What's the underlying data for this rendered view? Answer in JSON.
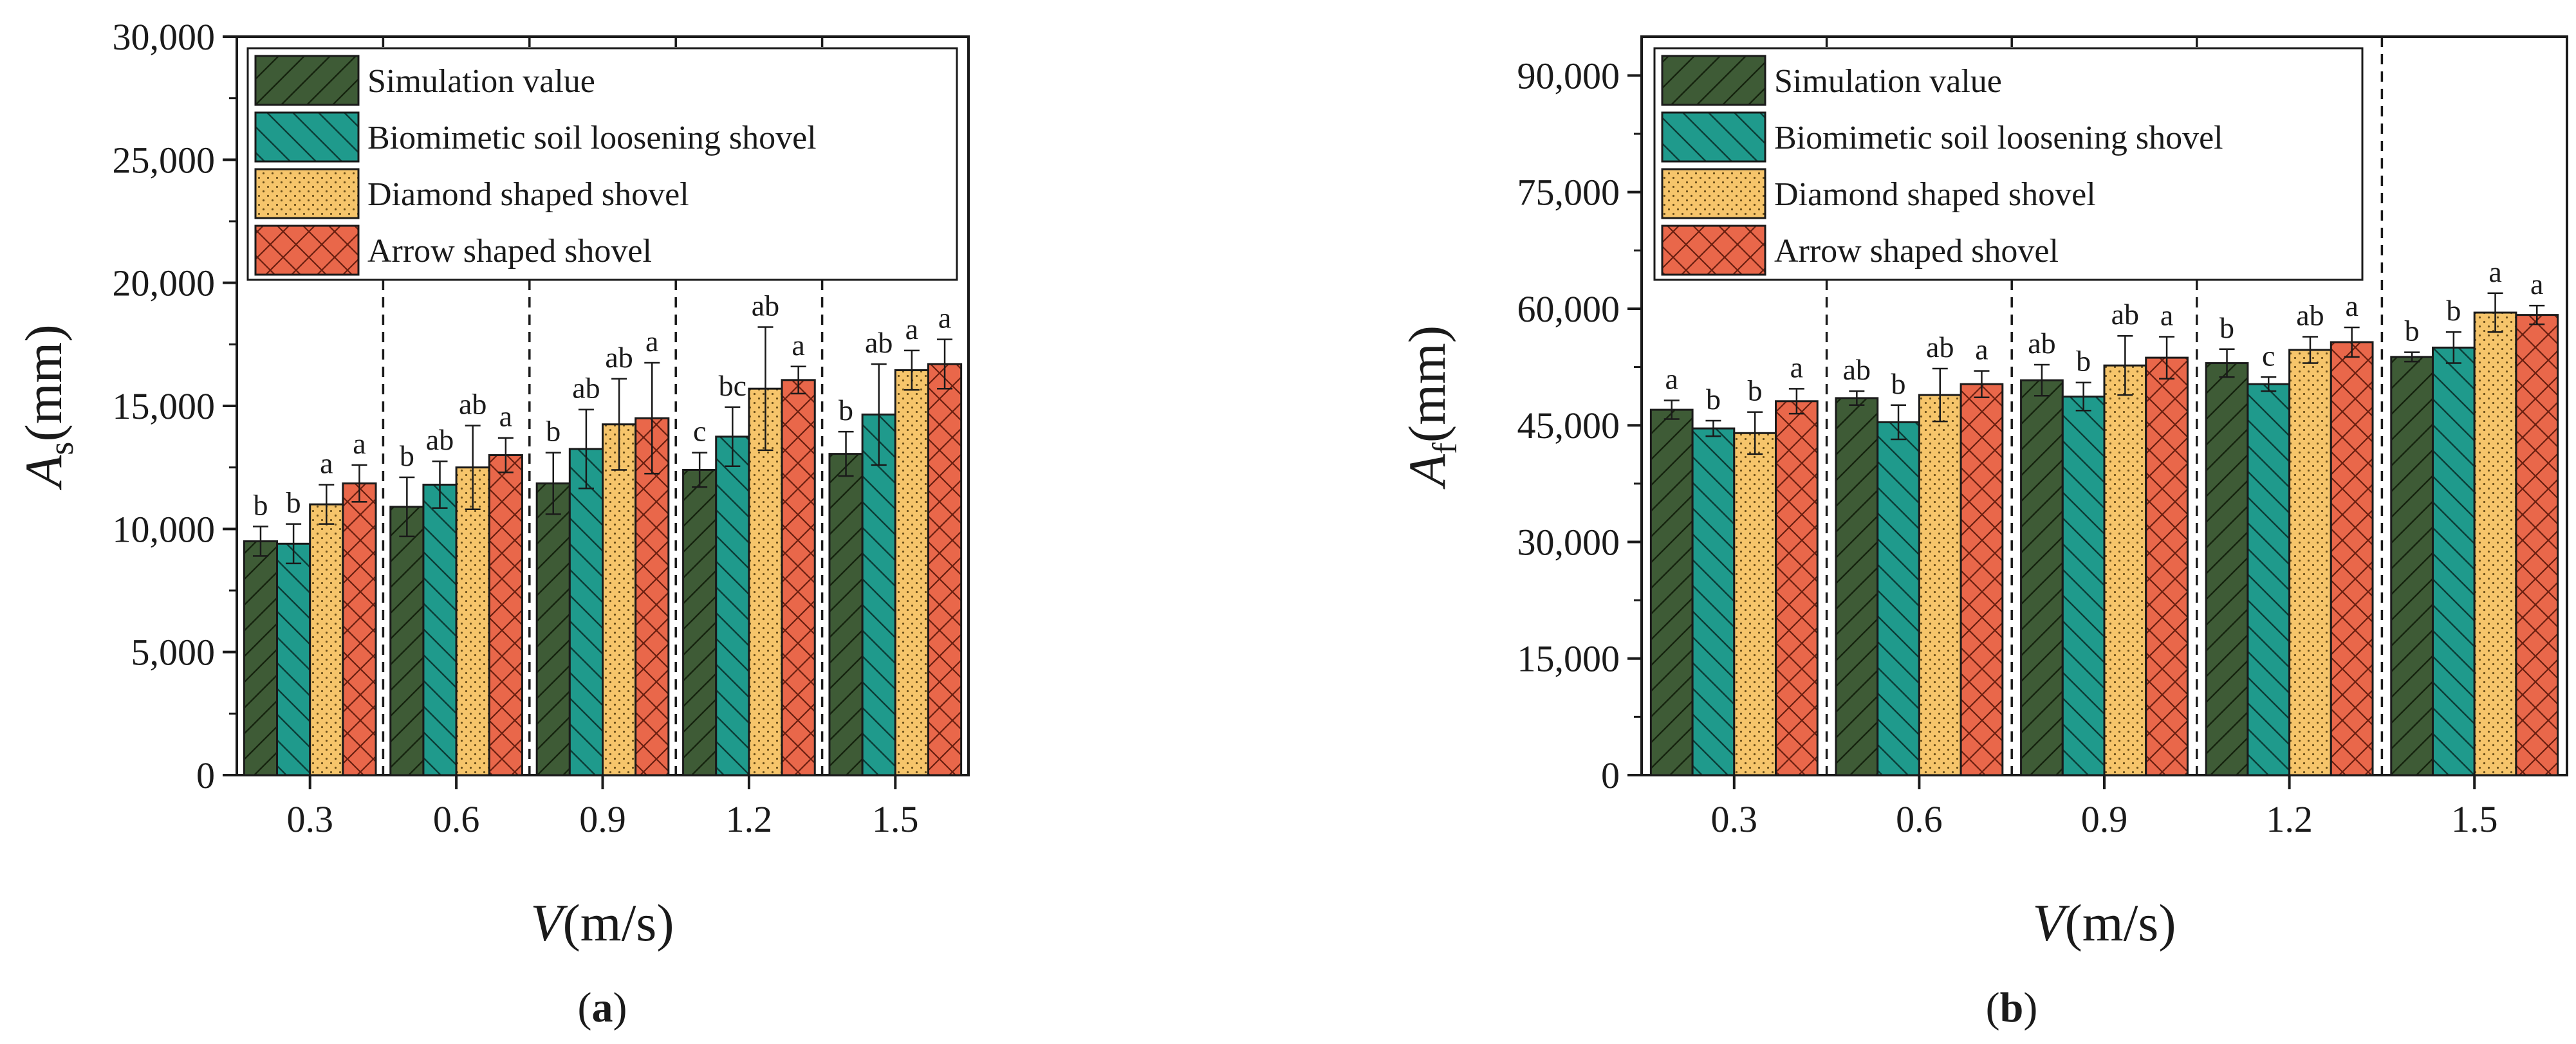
{
  "colors": {
    "simulation": "#3e5b36",
    "biomimetic": "#1f9a8c",
    "diamond": "#f6c56b",
    "arrow": "#e9674a",
    "axis": "#1a1a1a"
  },
  "legend": [
    {
      "key": "simulation",
      "label": "Simulation value"
    },
    {
      "key": "biomimetic",
      "label": "Biomimetic soil loosening shovel"
    },
    {
      "key": "diamond",
      "label": "Diamond shaped shovel"
    },
    {
      "key": "arrow",
      "label": "Arrow shaped shovel"
    }
  ],
  "chart_data": [
    {
      "type": "bar",
      "panel_label": "(a)",
      "ylabel_main": "A",
      "ylabel_sub": "s",
      "ylabel_unit": "(mm)",
      "xlabel_main": "V",
      "xlabel_unit": "(m/s)",
      "ylim": [
        0,
        30000
      ],
      "yticks": [
        0,
        5000,
        10000,
        15000,
        20000,
        25000,
        30000
      ],
      "ytick_labels": [
        "0",
        "5,000",
        "10,000",
        "15,000",
        "20,000",
        "25,000",
        "30,000"
      ],
      "categories": [
        "0.3",
        "0.6",
        "0.9",
        "1.2",
        "1.5"
      ],
      "legend_position": "top-left",
      "series": [
        {
          "name": "Simulation value",
          "key": "simulation",
          "values": [
            9500,
            10900,
            11850,
            12400,
            13050
          ],
          "errors": [
            600,
            1200,
            1250,
            700,
            900
          ],
          "letters": [
            "b",
            "b",
            "b",
            "c",
            "b"
          ]
        },
        {
          "name": "Biomimetic soil loosening shovel",
          "key": "biomimetic",
          "values": [
            9400,
            11800,
            13250,
            13750,
            14650
          ],
          "errors": [
            800,
            950,
            1600,
            1200,
            2050
          ],
          "letters": [
            "b",
            "ab",
            "ab",
            "bc",
            "ab"
          ]
        },
        {
          "name": "Diamond shaped shovel",
          "key": "diamond",
          "values": [
            11000,
            12500,
            14250,
            15700,
            16450
          ],
          "errors": [
            800,
            1700,
            1850,
            2500,
            800
          ],
          "letters": [
            "a",
            "ab",
            "ab",
            "ab",
            "a"
          ]
        },
        {
          "name": "Arrow shaped shovel",
          "key": "arrow",
          "values": [
            11850,
            13000,
            14500,
            16050,
            16700
          ],
          "errors": [
            750,
            700,
            2250,
            550,
            1000
          ],
          "letters": [
            "a",
            "a",
            "a",
            "a",
            "a"
          ]
        }
      ]
    },
    {
      "type": "bar",
      "panel_label": "(b)",
      "ylabel_main": "A",
      "ylabel_sub": "f",
      "ylabel_unit": "(mm)",
      "xlabel_main": "V",
      "xlabel_unit": "(m/s)",
      "ylim": [
        0,
        95000
      ],
      "yticks": [
        0,
        15000,
        30000,
        45000,
        60000,
        75000,
        90000
      ],
      "ytick_labels": [
        "0",
        "15,000",
        "30,000",
        "45,000",
        "60,000",
        "75,000",
        "90,000"
      ],
      "categories": [
        "0.3",
        "0.6",
        "0.9",
        "1.2",
        "1.5"
      ],
      "legend_position": "top-left",
      "series": [
        {
          "name": "Simulation value",
          "key": "simulation",
          "values": [
            47000,
            48500,
            50800,
            53000,
            53800
          ],
          "errors": [
            1200,
            900,
            2000,
            1800,
            600
          ],
          "letters": [
            "a",
            "ab",
            "ab",
            "b",
            "b"
          ]
        },
        {
          "name": "Biomimetic soil loosening shovel",
          "key": "biomimetic",
          "values": [
            44600,
            45400,
            48700,
            50300,
            55000
          ],
          "errors": [
            1000,
            2200,
            1800,
            900,
            2000
          ],
          "letters": [
            "b",
            "b",
            "b",
            "c",
            "b"
          ]
        },
        {
          "name": "Diamond shaped shovel",
          "key": "diamond",
          "values": [
            44000,
            48900,
            52700,
            54700,
            59500
          ],
          "errors": [
            2700,
            3400,
            3800,
            1700,
            2500
          ],
          "letters": [
            "b",
            "ab",
            "ab",
            "ab",
            "a"
          ]
        },
        {
          "name": "Arrow shaped shovel",
          "key": "arrow",
          "values": [
            48100,
            50300,
            53700,
            55700,
            59200
          ],
          "errors": [
            1600,
            1700,
            2700,
            1900,
            1200
          ],
          "letters": [
            "a",
            "a",
            "a",
            "a",
            "a"
          ]
        }
      ]
    }
  ]
}
